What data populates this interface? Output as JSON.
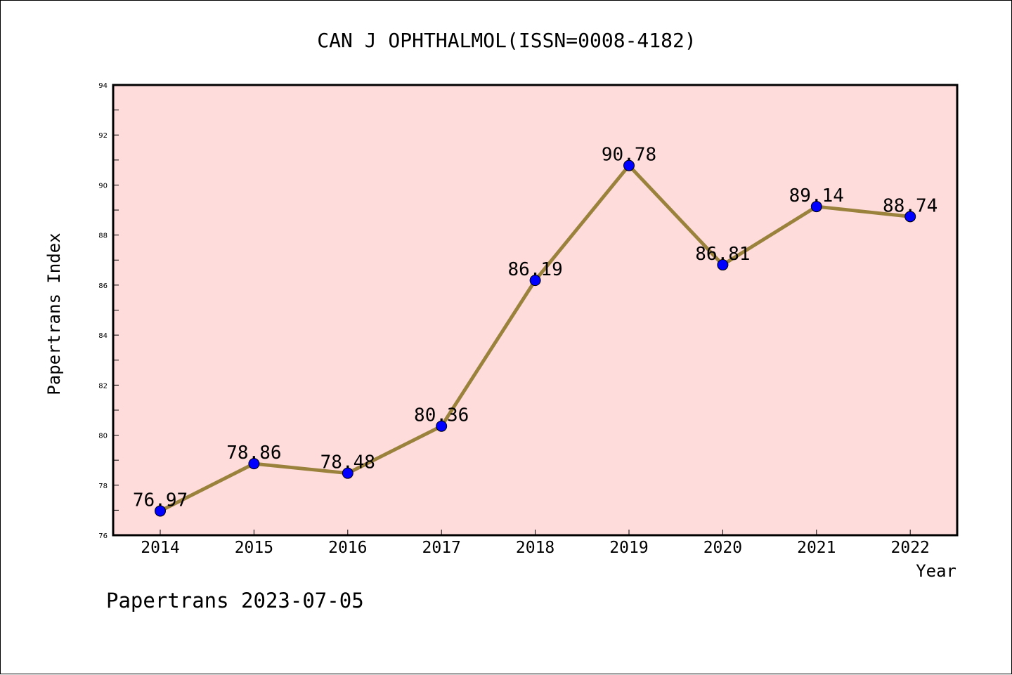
{
  "chart_data": {
    "type": "line",
    "title": "CAN J OPHTHALMOL(ISSN=0008-4182)",
    "xlabel": "Year",
    "ylabel": "Papertrans Index",
    "categories": [
      "2014",
      "2015",
      "2016",
      "2017",
      "2018",
      "2019",
      "2020",
      "2021",
      "2022"
    ],
    "series": [
      {
        "values": [
          76.97,
          78.86,
          78.48,
          80.36,
          86.19,
          90.78,
          86.81,
          89.14,
          88.74
        ],
        "labels": [
          "76.97",
          "78.86",
          "78.48",
          "80.36",
          "86.19",
          "90.78",
          "86.81",
          "89.14",
          "88.74"
        ],
        "line_color": "#9b823c",
        "marker_color": "#0000ff"
      }
    ],
    "ylim": [
      76,
      94
    ],
    "yticks": [
      "76",
      "78",
      "80",
      "82",
      "84",
      "86",
      "88",
      "90",
      "92",
      "94"
    ],
    "plot_background": "#ffdcdc",
    "grid": false,
    "legend": "none"
  },
  "footer": {
    "text": "Papertrans 2023-07-05"
  }
}
